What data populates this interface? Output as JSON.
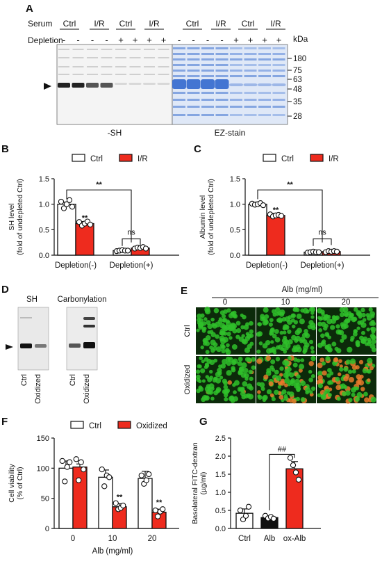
{
  "panelA": {
    "label": "A",
    "serum_label": "Serum",
    "depletion_label": "Depletion",
    "kda_label": "kDa",
    "groups": [
      "Ctrl",
      "I/R",
      "Ctrl",
      "I/R",
      "Ctrl",
      "I/R",
      "Ctrl",
      "I/R"
    ],
    "depletion_signs": [
      "-",
      "-",
      "-",
      "-",
      "+",
      "+",
      "+",
      "+",
      "-",
      "-",
      "-",
      "-",
      "+",
      "+",
      "+",
      "+"
    ],
    "markers": [
      "180",
      "75",
      "63",
      "48",
      "35",
      "28"
    ],
    "left_caption": "-SH",
    "right_caption": "EZ-stain",
    "gel_colors": {
      "coomassie": "#3a6fd0",
      "background_right": "#dfe8f7"
    }
  },
  "panelB": {
    "label": "B",
    "chart_data": {
      "type": "bar",
      "categories": [
        "Depletion(-)",
        "Depletion(+)"
      ],
      "series": [
        {
          "name": "Ctrl",
          "values": [
            1.0,
            0.09
          ],
          "points": [
            [
              1.05,
              0.92,
              1.0,
              1.08,
              0.95
            ],
            [
              0.08,
              0.09,
              0.1,
              0.09,
              0.09
            ]
          ],
          "color": "#ffffff"
        },
        {
          "name": "I/R",
          "values": [
            0.62,
            0.14
          ],
          "points": [
            [
              0.65,
              0.58,
              0.62,
              0.66,
              0.6
            ],
            [
              0.13,
              0.15,
              0.14,
              0.16,
              0.13
            ]
          ],
          "color": "#ee2b1e"
        }
      ],
      "ylabel": [
        "SH level",
        "(fold of undepleted Ctrl)"
      ],
      "ylim": [
        0,
        1.5
      ],
      "yticks": [
        "0.0",
        "0.5",
        "1.0",
        "1.5"
      ],
      "annotations": [
        "**",
        "**",
        "ns"
      ]
    }
  },
  "panelC": {
    "label": "C",
    "chart_data": {
      "type": "bar",
      "categories": [
        "Depletion(-)",
        "Depletion(+)"
      ],
      "series": [
        {
          "name": "Ctrl",
          "values": [
            1.0,
            0.06
          ],
          "points": [
            [
              1.01,
              0.99,
              1.0,
              1.02,
              0.98
            ],
            [
              0.05,
              0.06,
              0.07,
              0.06,
              0.06
            ]
          ],
          "color": "#ffffff"
        },
        {
          "name": "I/R",
          "values": [
            0.78,
            0.07
          ],
          "points": [
            [
              0.8,
              0.76,
              0.78,
              0.79,
              0.77
            ],
            [
              0.06,
              0.08,
              0.07,
              0.08,
              0.07
            ]
          ],
          "color": "#ee2b1e"
        }
      ],
      "ylabel": [
        "Albumin level",
        "(fold of undepleted Ctrl)"
      ],
      "ylim": [
        0,
        1.5
      ],
      "yticks": [
        "0.0",
        "0.5",
        "1.0",
        "1.5"
      ],
      "annotations": [
        "**",
        "**",
        "ns"
      ]
    }
  },
  "panelD": {
    "label": "D",
    "titles": [
      "SH",
      "Carbonylation"
    ],
    "lanes": [
      "Ctrl",
      "Oxidized"
    ]
  },
  "panelE": {
    "label": "E",
    "title": "Alb (mg/ml)",
    "cols": [
      "0",
      "10",
      "20"
    ],
    "rows": [
      "Ctrl",
      "Oxidized"
    ],
    "colors": {
      "green": "#2fbf2a",
      "orange": "#e6792a",
      "dark": "#0c2a0a"
    }
  },
  "panelF": {
    "label": "F",
    "chart_data": {
      "type": "bar",
      "categories": [
        "0",
        "10",
        "20"
      ],
      "series": [
        {
          "name": "Ctrl",
          "values": [
            100,
            85,
            83
          ],
          "points": [
            [
              112,
              78,
              102,
              110
            ],
            [
              98,
              70,
              88,
              85
            ],
            [
              88,
              74,
              80,
              90
            ]
          ],
          "color": "#ffffff"
        },
        {
          "name": "Oxidized",
          "values": [
            102,
            36,
            27
          ],
          "points": [
            [
              115,
              80,
              110,
              98
            ],
            [
              42,
              32,
              34,
              38
            ],
            [
              30,
              20,
              28,
              32
            ]
          ],
          "color": "#ee2b1e"
        }
      ],
      "xlabel": "Alb (mg/ml)",
      "ylabel": [
        "Cell viability",
        "(% of Ctrl)"
      ],
      "ylim": [
        0,
        150
      ],
      "yticks": [
        "0",
        "50",
        "100",
        "150"
      ],
      "annotations": [
        "**",
        "**"
      ]
    }
  },
  "panelG": {
    "label": "G",
    "chart_data": {
      "type": "bar",
      "categories": [
        "Ctrl",
        "Alb",
        "ox-Alb"
      ],
      "values": [
        0.42,
        0.3,
        1.65
      ],
      "errors": [
        0.12,
        0.05,
        0.2
      ],
      "points": [
        [
          0.5,
          0.25,
          0.35,
          0.6
        ],
        [
          0.35,
          0.28,
          0.32,
          0.27
        ],
        [
          1.95,
          1.75,
          1.55,
          1.35
        ]
      ],
      "colors": [
        "#ffffff",
        "#111111",
        "#ee2b1e"
      ],
      "ylabel": [
        "Basolateral FITC-dextran",
        "(µg/ml)"
      ],
      "ylim": [
        0,
        2.5
      ],
      "yticks": [
        "0.0",
        "0.5",
        "1.0",
        "1.5",
        "2.0",
        "2.5"
      ],
      "annotations": [
        "##"
      ]
    }
  }
}
